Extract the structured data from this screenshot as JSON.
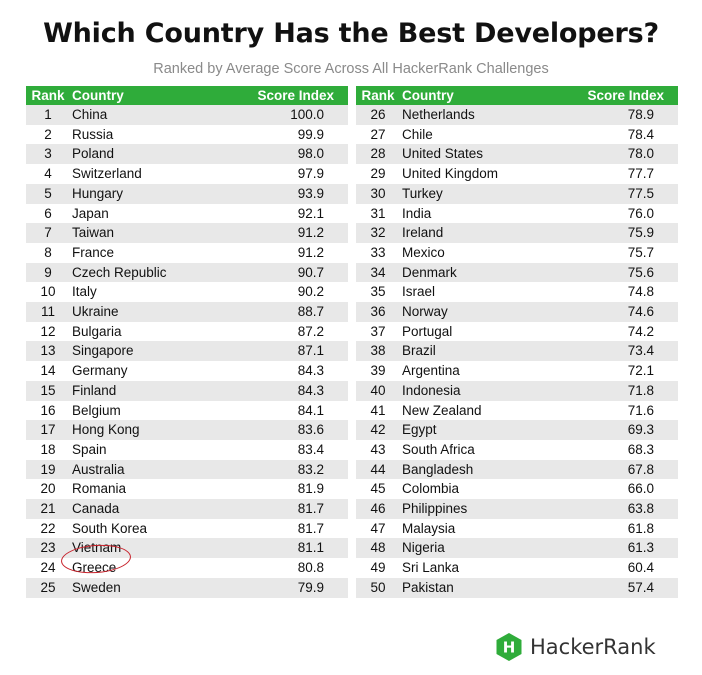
{
  "chart_data": {
    "type": "table",
    "title": "Which Country Has the Best Developers?",
    "subtitle": "Ranked by Average Score Across All HackerRank Challenges",
    "columns": [
      "Rank",
      "Country",
      "Score Index"
    ],
    "rows": [
      {
        "rank": "1",
        "country": "China",
        "score": "100.0"
      },
      {
        "rank": "2",
        "country": "Russia",
        "score": "99.9"
      },
      {
        "rank": "3",
        "country": "Poland",
        "score": "98.0"
      },
      {
        "rank": "4",
        "country": "Switzerland",
        "score": "97.9"
      },
      {
        "rank": "5",
        "country": "Hungary",
        "score": "93.9"
      },
      {
        "rank": "6",
        "country": "Japan",
        "score": "92.1"
      },
      {
        "rank": "7",
        "country": "Taiwan",
        "score": "91.2"
      },
      {
        "rank": "8",
        "country": "France",
        "score": "91.2"
      },
      {
        "rank": "9",
        "country": "Czech Republic",
        "score": "90.7"
      },
      {
        "rank": "10",
        "country": "Italy",
        "score": "90.2"
      },
      {
        "rank": "11",
        "country": "Ukraine",
        "score": "88.7"
      },
      {
        "rank": "12",
        "country": "Bulgaria",
        "score": "87.2"
      },
      {
        "rank": "13",
        "country": "Singapore",
        "score": "87.1"
      },
      {
        "rank": "14",
        "country": "Germany",
        "score": "84.3"
      },
      {
        "rank": "15",
        "country": "Finland",
        "score": "84.3"
      },
      {
        "rank": "16",
        "country": "Belgium",
        "score": "84.1"
      },
      {
        "rank": "17",
        "country": "Hong Kong",
        "score": "83.6"
      },
      {
        "rank": "18",
        "country": "Spain",
        "score": "83.4"
      },
      {
        "rank": "19",
        "country": "Australia",
        "score": "83.2"
      },
      {
        "rank": "20",
        "country": "Romania",
        "score": "81.9"
      },
      {
        "rank": "21",
        "country": "Canada",
        "score": "81.7"
      },
      {
        "rank": "22",
        "country": "South Korea",
        "score": "81.7"
      },
      {
        "rank": "23",
        "country": "Vietnam",
        "score": "81.1"
      },
      {
        "rank": "24",
        "country": "Greece",
        "score": "80.8"
      },
      {
        "rank": "25",
        "country": "Sweden",
        "score": "79.9"
      },
      {
        "rank": "26",
        "country": "Netherlands",
        "score": "78.9"
      },
      {
        "rank": "27",
        "country": "Chile",
        "score": "78.4"
      },
      {
        "rank": "28",
        "country": "United States",
        "score": "78.0"
      },
      {
        "rank": "29",
        "country": "United Kingdom",
        "score": "77.7"
      },
      {
        "rank": "30",
        "country": "Turkey",
        "score": "77.5"
      },
      {
        "rank": "31",
        "country": "India",
        "score": "76.0"
      },
      {
        "rank": "32",
        "country": "Ireland",
        "score": "75.9"
      },
      {
        "rank": "33",
        "country": "Mexico",
        "score": "75.7"
      },
      {
        "rank": "34",
        "country": "Denmark",
        "score": "75.6"
      },
      {
        "rank": "35",
        "country": "Israel",
        "score": "74.8"
      },
      {
        "rank": "36",
        "country": "Norway",
        "score": "74.6"
      },
      {
        "rank": "37",
        "country": "Portugal",
        "score": "74.2"
      },
      {
        "rank": "38",
        "country": "Brazil",
        "score": "73.4"
      },
      {
        "rank": "39",
        "country": "Argentina",
        "score": "72.1"
      },
      {
        "rank": "40",
        "country": "Indonesia",
        "score": "71.8"
      },
      {
        "rank": "41",
        "country": "New Zealand",
        "score": "71.6"
      },
      {
        "rank": "42",
        "country": "Egypt",
        "score": "69.3"
      },
      {
        "rank": "43",
        "country": "South Africa",
        "score": "68.3"
      },
      {
        "rank": "44",
        "country": "Bangladesh",
        "score": "67.8"
      },
      {
        "rank": "45",
        "country": "Colombia",
        "score": "66.0"
      },
      {
        "rank": "46",
        "country": "Philippines",
        "score": "63.8"
      },
      {
        "rank": "47",
        "country": "Malaysia",
        "score": "61.8"
      },
      {
        "rank": "48",
        "country": "Nigeria",
        "score": "61.3"
      },
      {
        "rank": "49",
        "country": "Sri Lanka",
        "score": "60.4"
      },
      {
        "rank": "50",
        "country": "Pakistan",
        "score": "57.4"
      }
    ],
    "highlighted_country": "Vietnam",
    "colors": {
      "header": "#2fac3a",
      "stripe": "#e8e8e8",
      "highlight": "#c8232c"
    }
  },
  "branding": {
    "name": "HackerRank",
    "icon": "hackerrank-logo-icon",
    "logo_letter": "H",
    "color": "#2fac3a"
  }
}
